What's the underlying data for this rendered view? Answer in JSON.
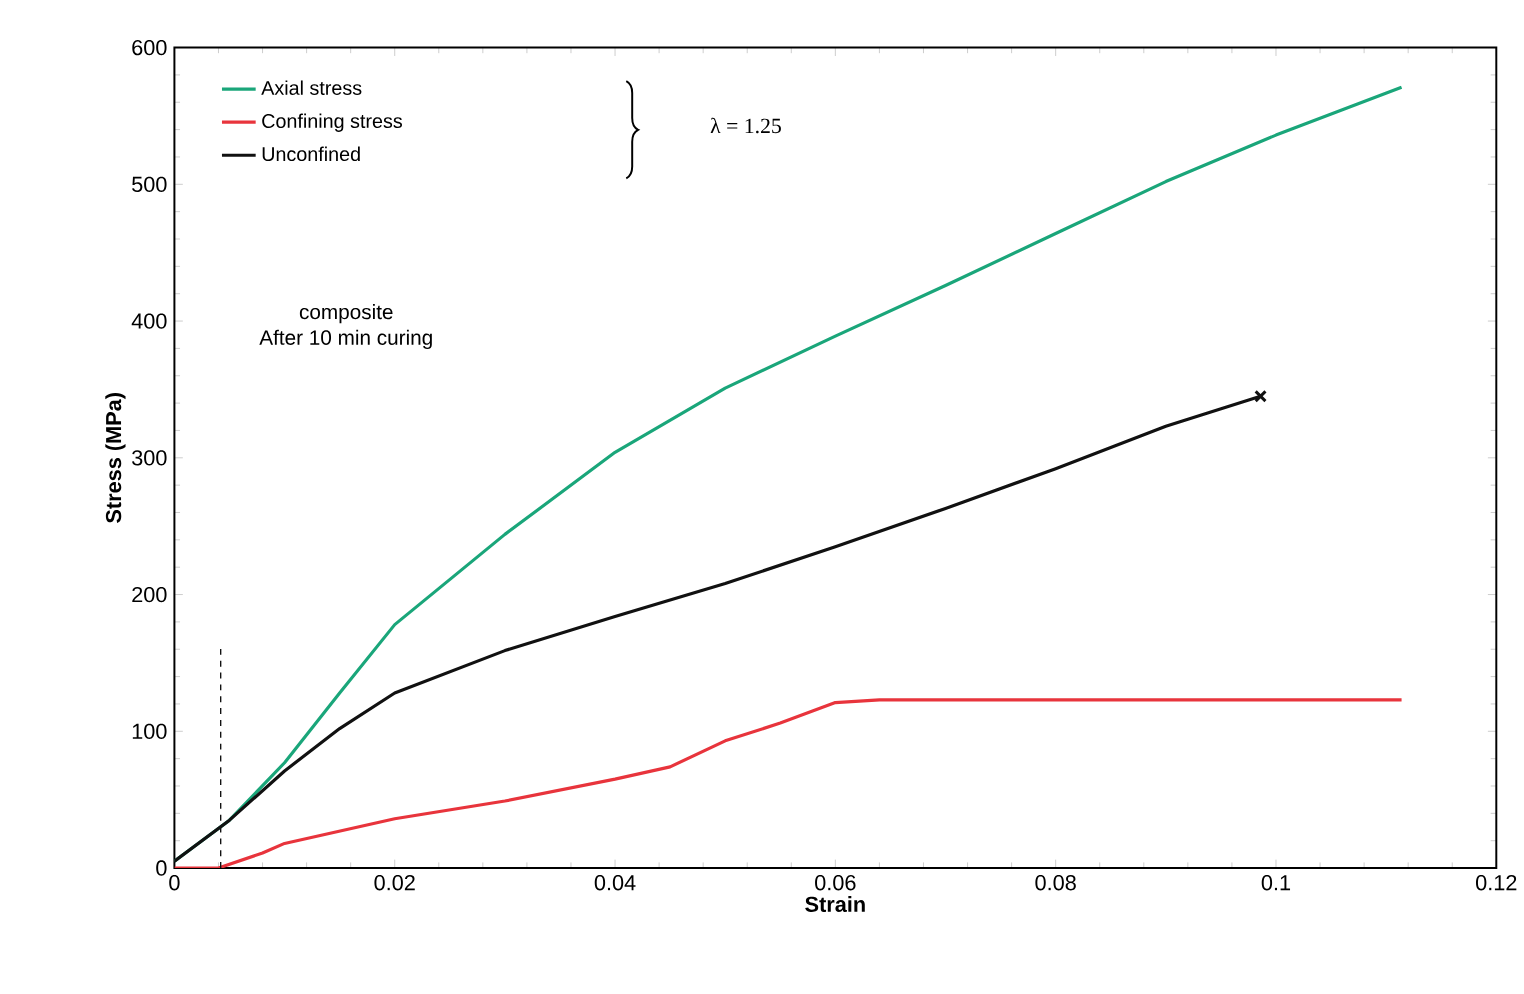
{
  "chart_data": {
    "type": "line",
    "xlabel": "Strain",
    "ylabel": "Stress (MPa)",
    "xlim": [
      0,
      0.12
    ],
    "xticks": [
      0,
      0.02,
      0.04,
      0.06,
      0.08,
      0.1,
      0.12
    ],
    "ylim": [
      0,
      600
    ],
    "yticks": [
      0,
      100,
      200,
      300,
      400,
      500,
      600
    ],
    "grid": false,
    "legend": "top left",
    "annotations": [
      "λ = 1.25",
      "composite",
      "After 10 min curing"
    ],
    "series": [
      {
        "name": "Axial stress",
        "color": "#1aa67a",
        "x": [
          0,
          0.005,
          0.01,
          0.015,
          0.02,
          0.03,
          0.04,
          0.05,
          0.06,
          0.07,
          0.08,
          0.09,
          0.1,
          0.1114
        ],
        "values": [
          5,
          35,
          77,
          128,
          178,
          244,
          304,
          351,
          389,
          426,
          464,
          502,
          536,
          571
        ]
      },
      {
        "name": "Confining stress",
        "color": "#e8343c",
        "x": [
          0,
          0.004,
          0.008,
          0.01,
          0.02,
          0.03,
          0.04,
          0.045,
          0.05,
          0.055,
          0.057,
          0.06,
          0.064,
          0.08,
          0.1114
        ],
        "values": [
          0,
          0,
          11,
          18,
          36,
          49,
          65,
          74,
          93,
          106,
          112,
          121,
          123,
          123,
          123
        ]
      },
      {
        "name": "Unconfined",
        "color": "#111111",
        "x": [
          0,
          0.005,
          0.01,
          0.015,
          0.02,
          0.03,
          0.04,
          0.05,
          0.06,
          0.07,
          0.08,
          0.09,
          0.0986
        ],
        "values": [
          5,
          35,
          71,
          102,
          128,
          159,
          184,
          208,
          235,
          263,
          292,
          323,
          345
        ]
      },
      {
        "type": "scatter",
        "marker": "cross",
        "color": "#111111",
        "x": [
          0.0986
        ],
        "values": [
          345
        ]
      },
      {
        "line_style": "dashed",
        "color": "#111111",
        "x": [
          0.0042,
          0.0042
        ],
        "values": [
          0,
          162
        ]
      }
    ]
  }
}
